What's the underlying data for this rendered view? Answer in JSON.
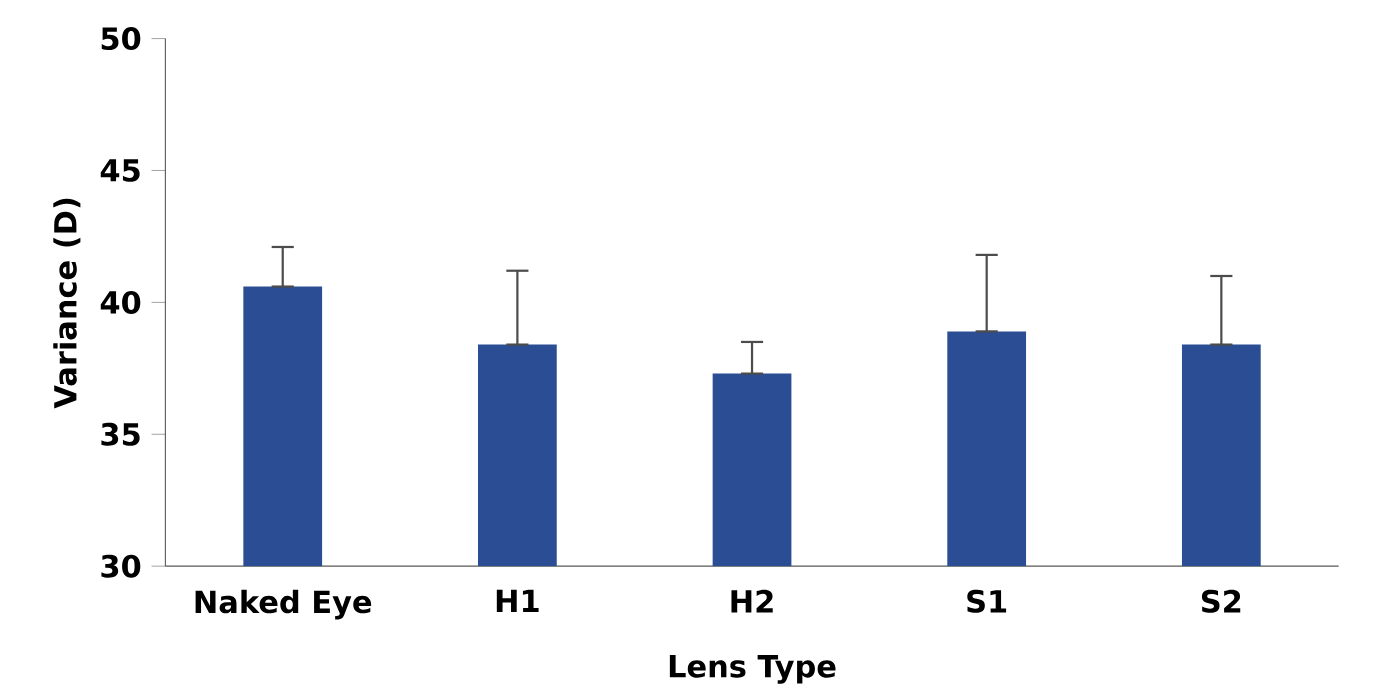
{
  "chart_data": {
    "type": "bar",
    "xlabel": "Lens Type",
    "ylabel": "Variance (D)",
    "categories": [
      "Naked Eye",
      "H1",
      "H2",
      "S1",
      "S2"
    ],
    "values": [
      40.6,
      38.4,
      37.3,
      38.9,
      38.4
    ],
    "errors": [
      [
        40.6,
        42.1
      ],
      [
        38.4,
        41.2
      ],
      [
        37.3,
        38.5
      ],
      [
        38.9,
        41.8
      ],
      [
        38.4,
        41.0
      ]
    ],
    "color": "#2a4d94",
    "ylim": [
      30,
      50
    ],
    "yticks": [
      30,
      35,
      40,
      45,
      50
    ],
    "grid": false
  }
}
